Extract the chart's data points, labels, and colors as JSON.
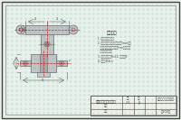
{
  "bg_color": "#e0eeee",
  "border_color": "#444444",
  "line_color": "#666666",
  "dark_line": "#333333",
  "red_line_color": "#cc2222",
  "dot_color": "#66cccc",
  "tech_req_title": "技术要求",
  "tech_req_lines": [
    "1. 不允许有裂纹等缺陷",
    "2. 铸件锻件的晶间腐蚀深度不大于5mm以上",
    "   的情况处理，锻比系数大于Fcm，不允许有",
    "   针孔等缺陷存在。",
    "3. 未注明铸造圆角R=10, 拔模斜度5°",
    "4. 材料：45#-n"
  ],
  "title_block": {
    "main_title": "飞锤支架零件毛坯图",
    "scale": "1:1",
    "designer": "J.L",
    "company": "大连理工大学机械院",
    "sheet": "共100图"
  },
  "drawing_bg": "#ddeedd",
  "fill_gray": "#c8c8c8",
  "fill_dark": "#aaaaaa",
  "hatch_color": "#999999"
}
